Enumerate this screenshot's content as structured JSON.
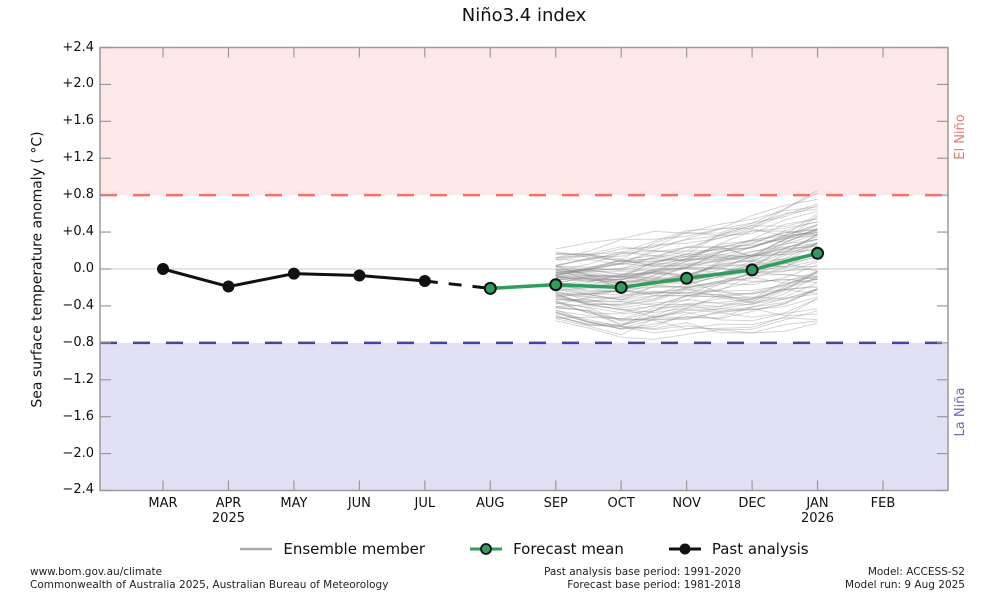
{
  "title": "Niño3.4 index",
  "regions": {
    "el_nino": {
      "label": "El Niño",
      "text_color": "#e57a72",
      "band_color": "#fce8e6",
      "line_color": "#f4726b",
      "threshold_label": "+0.8"
    },
    "la_nina": {
      "label": "La Niña",
      "text_color": "#6e6cb8",
      "band_color": "#e1e0f5",
      "line_color": "#44439e",
      "threshold_label": "−0.8"
    }
  },
  "legend": {
    "items": [
      {
        "label": "Ensemble member",
        "color": "#aaaaaa",
        "type": "line"
      },
      {
        "label": "Forecast mean",
        "color": "#2e9e5b",
        "type": "line-dot"
      },
      {
        "label": "Past analysis",
        "color": "#111111",
        "type": "line-dot"
      }
    ]
  },
  "footer": {
    "left": [
      "www.bom.gov.au/climate",
      "Commonwealth of Australia 2025, Australian Bureau of Meteorology"
    ],
    "center": [
      "Past analysis base period: 1991-2020",
      "Forecast base period: 1981-2018"
    ],
    "right": [
      "Model: ACCESS-S2",
      "Model run: 9 Aug 2025"
    ]
  },
  "chart_data": {
    "type": "line",
    "title": "Niño3.4 index",
    "xlabel": "",
    "ylabel": "Sea surface temperature anomaly ( °C)",
    "ylim": [
      -2.4,
      2.4
    ],
    "grid": "zero-line-only",
    "legend_position": "bottom",
    "frame_color": "#999999",
    "zero_line_color": "#cccccc",
    "x_categories": [
      "MAR",
      "APR",
      "MAY",
      "JUN",
      "JUL",
      "AUG",
      "SEP",
      "OCT",
      "NOV",
      "DEC",
      "JAN",
      "FEB"
    ],
    "xticks": [
      {
        "label": "MAR"
      },
      {
        "label": "APR",
        "year": "2025"
      },
      {
        "label": "MAY"
      },
      {
        "label": "JUN"
      },
      {
        "label": "JUL"
      },
      {
        "label": "AUG"
      },
      {
        "label": "SEP"
      },
      {
        "label": "OCT"
      },
      {
        "label": "NOV"
      },
      {
        "label": "DEC"
      },
      {
        "label": "JAN",
        "year": "2026"
      },
      {
        "label": "FEB"
      }
    ],
    "yticks": [
      {
        "value": 2.4,
        "label": "+2.4"
      },
      {
        "value": 2.0,
        "label": "+2.0"
      },
      {
        "value": 1.6,
        "label": "+1.6"
      },
      {
        "value": 1.2,
        "label": "+1.2"
      },
      {
        "value": 0.8,
        "label": "+0.8"
      },
      {
        "value": 0.4,
        "label": "+0.4"
      },
      {
        "value": 0.0,
        "label": "0.0"
      },
      {
        "value": -0.4,
        "label": "−0.4"
      },
      {
        "value": -0.8,
        "label": "−0.8"
      },
      {
        "value": -1.2,
        "label": "−1.2"
      },
      {
        "value": -1.6,
        "label": "−1.6"
      },
      {
        "value": -2.0,
        "label": "−2.0"
      },
      {
        "value": -2.4,
        "label": "−2.4"
      }
    ],
    "thresholds": {
      "el_nino": 0.8,
      "la_nina": -0.8
    },
    "series": [
      {
        "name": "Past analysis",
        "type": "line",
        "color": "#111111",
        "x": [
          "MAR",
          "APR",
          "MAY",
          "JUN",
          "JUL"
        ],
        "values": [
          0.0,
          -0.19,
          -0.05,
          -0.07,
          -0.13
        ],
        "dashed_connector_to_forecast": true
      },
      {
        "name": "Forecast mean",
        "type": "line",
        "color": "#2e9e5b",
        "x": [
          "AUG",
          "SEP",
          "OCT",
          "NOV",
          "DEC",
          "JAN"
        ],
        "values": [
          -0.21,
          -0.17,
          -0.2,
          -0.1,
          -0.01,
          0.17
        ]
      },
      {
        "name": "Ensemble member",
        "type": "ensemble",
        "color": "#888888",
        "count": 90,
        "x": [
          "SEP",
          "OCT",
          "NOV",
          "DEC",
          "JAN"
        ],
        "mean": [
          -0.17,
          -0.2,
          -0.1,
          -0.01,
          0.17
        ],
        "spread": [
          0.4,
          0.55,
          0.58,
          0.65,
          0.72
        ]
      }
    ]
  }
}
